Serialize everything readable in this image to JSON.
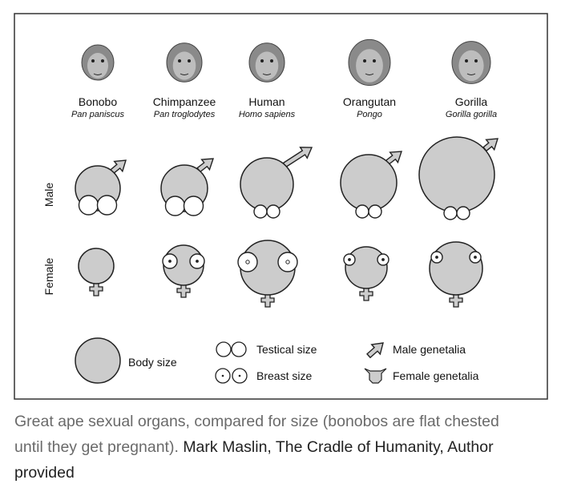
{
  "species": [
    {
      "name": "Bonobo",
      "latin": "Pan paniscus"
    },
    {
      "name": "Chimpanzee",
      "latin": "Pan troglodytes"
    },
    {
      "name": "Human",
      "latin": "Homo sapiens"
    },
    {
      "name": "Orangutan",
      "latin": "Pongo"
    },
    {
      "name": "Gorilla",
      "latin": "Gorilla gorilla"
    }
  ],
  "rows": {
    "male": "Male",
    "female": "Female"
  },
  "legend": {
    "body": "Body size",
    "testes": "Testical size",
    "breast": "Breast size",
    "male_genitalia": "Male genetalia",
    "female_genitalia": "Female genetalia"
  },
  "colors": {
    "fill": "#cccccc",
    "stroke": "#222222"
  },
  "caption": {
    "text": "Great ape sexual organs, compared for size (bonobos are flat chested until they get pregnant).",
    "credit": "Mark Maslin, The Cradle of Humanity, Author provided"
  }
}
